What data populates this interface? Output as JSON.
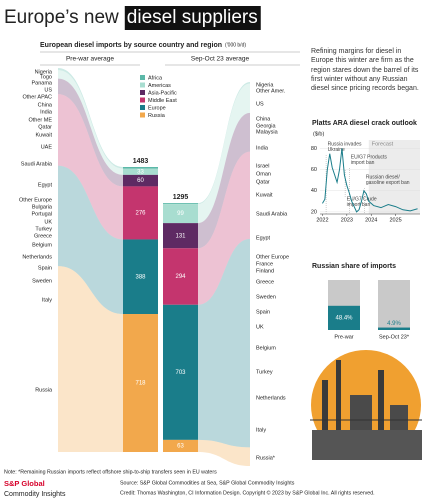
{
  "header": {
    "title": "Europe’s new",
    "title_highlight": "diesel suppliers"
  },
  "intro": "Refining margins for diesel in Europe this winter are firm as the region stares down the barrel of its first winter without any Russian diesel since pricing records began.",
  "chart_data": [
    {
      "type": "sankey_bar",
      "title": "European diesel imports by source country and region",
      "unit": "('000 b/d)",
      "categories": [
        "Pre-war average",
        "Sep-Oct 23 average"
      ],
      "totals": [
        1483,
        1295
      ],
      "series": [
        {
          "name": "Africa",
          "color": "#5bb8a8",
          "values": [
            8,
            5
          ]
        },
        {
          "name": "Americas",
          "color": "#a8ddd0",
          "values": [
            33,
            99
          ]
        },
        {
          "name": "Asia-Pacific",
          "color": "#5e2a63",
          "values": [
            60,
            131
          ]
        },
        {
          "name": "Middle East",
          "color": "#c4356e",
          "values": [
            276,
            294
          ]
        },
        {
          "name": "Europe",
          "color": "#1a7d8a",
          "values": [
            388,
            703
          ]
        },
        {
          "name": "Russia",
          "color": "#f2a84c",
          "values": [
            718,
            63
          ]
        }
      ],
      "countries": [
        [
          "Nigeria",
          "Togo",
          "Panama",
          "US",
          "Other APAC",
          "China",
          "India",
          "Other ME",
          "Qatar",
          "Kuwait",
          "UAE",
          "Saudi Arabia",
          "Egypt",
          "Other Europe",
          "Bulgaria",
          "Portugal",
          "UK",
          "Turkey",
          "Greece",
          "Belgium",
          "Netherlands",
          "Spain",
          "Sweden",
          "Italy",
          "Russia"
        ],
        [
          "Nigeria",
          "Other Amer.",
          "US",
          "China",
          "Georgia",
          "Malaysia",
          "India",
          "Israel",
          "Oman",
          "Qatar",
          "Kuwait",
          "Saudi Arabia",
          "Egypt",
          "Other Europe",
          "France",
          "Finland",
          "Greece",
          "Sweden",
          "Spain",
          "UK",
          "Belgium",
          "Turkey",
          "Netherlands",
          "Italy",
          "Russia*"
        ]
      ]
    },
    {
      "type": "line",
      "title": "Platts ARA diesel crack outlook",
      "ylabel": "($/b)",
      "color": "#1a7d8a",
      "x": [
        2022.0,
        2022.1,
        2022.2,
        2022.3,
        2022.4,
        2022.5,
        2022.6,
        2022.7,
        2022.8,
        2022.9,
        2023.0,
        2023.1,
        2023.2,
        2023.3,
        2023.4,
        2023.5,
        2023.6,
        2023.7,
        2023.8,
        2023.9,
        2024.1,
        2024.4,
        2024.7,
        2025.0,
        2025.3,
        2025.6,
        2025.9
      ],
      "values": [
        28,
        32,
        60,
        75,
        62,
        55,
        48,
        60,
        80,
        55,
        45,
        38,
        30,
        25,
        20,
        22,
        30,
        40,
        37,
        30,
        26,
        24,
        27,
        25,
        22,
        21,
        23
      ],
      "xlim": [
        2021.9,
        2026
      ],
      "ylim": [
        18,
        88
      ],
      "xticks": [
        2022,
        2023,
        2024,
        2025
      ],
      "yticks": [
        20,
        40,
        60,
        80
      ],
      "forecast": {
        "label": "Forecast",
        "start": 2023.9
      },
      "annotations": [
        {
          "lines": [
            "Russia invades",
            "Ukraine"
          ],
          "x": 2022.15
        },
        {
          "lines": [
            "EU/G7 Products",
            "import ban"
          ],
          "x": 2023.1
        },
        {
          "lines": [
            "Russian diesel/",
            "gasoline export ban"
          ],
          "x": 2023.72
        },
        {
          "lines": [
            "EU/G7 Crude",
            "import ban"
          ],
          "x": 2022.93
        }
      ]
    },
    {
      "type": "bar",
      "title": "Russian share of imports",
      "categories": [
        "Pre-war",
        "Sep-Oct 23*"
      ],
      "values": [
        48.4,
        4.9
      ],
      "value_labels": [
        "48.4%",
        "4.9%"
      ],
      "color": "#1a7d8a",
      "track_color": "#c9c9c9",
      "ylim": [
        0,
        100
      ]
    }
  ],
  "footer": {
    "note": "Note: *Remaining Russian imports reflect offshore ship-to-ship transfers seen in EU waters",
    "logo": [
      "S&P Global",
      "Commodity Insights"
    ],
    "source": "Source: S&P Global Commodities at Sea, S&P Global Commodity Insights",
    "credit": "Credit: Thomas Washington, CI Information Design. Copyright © 2023 by S&P Global Inc. All rights reserved."
  }
}
